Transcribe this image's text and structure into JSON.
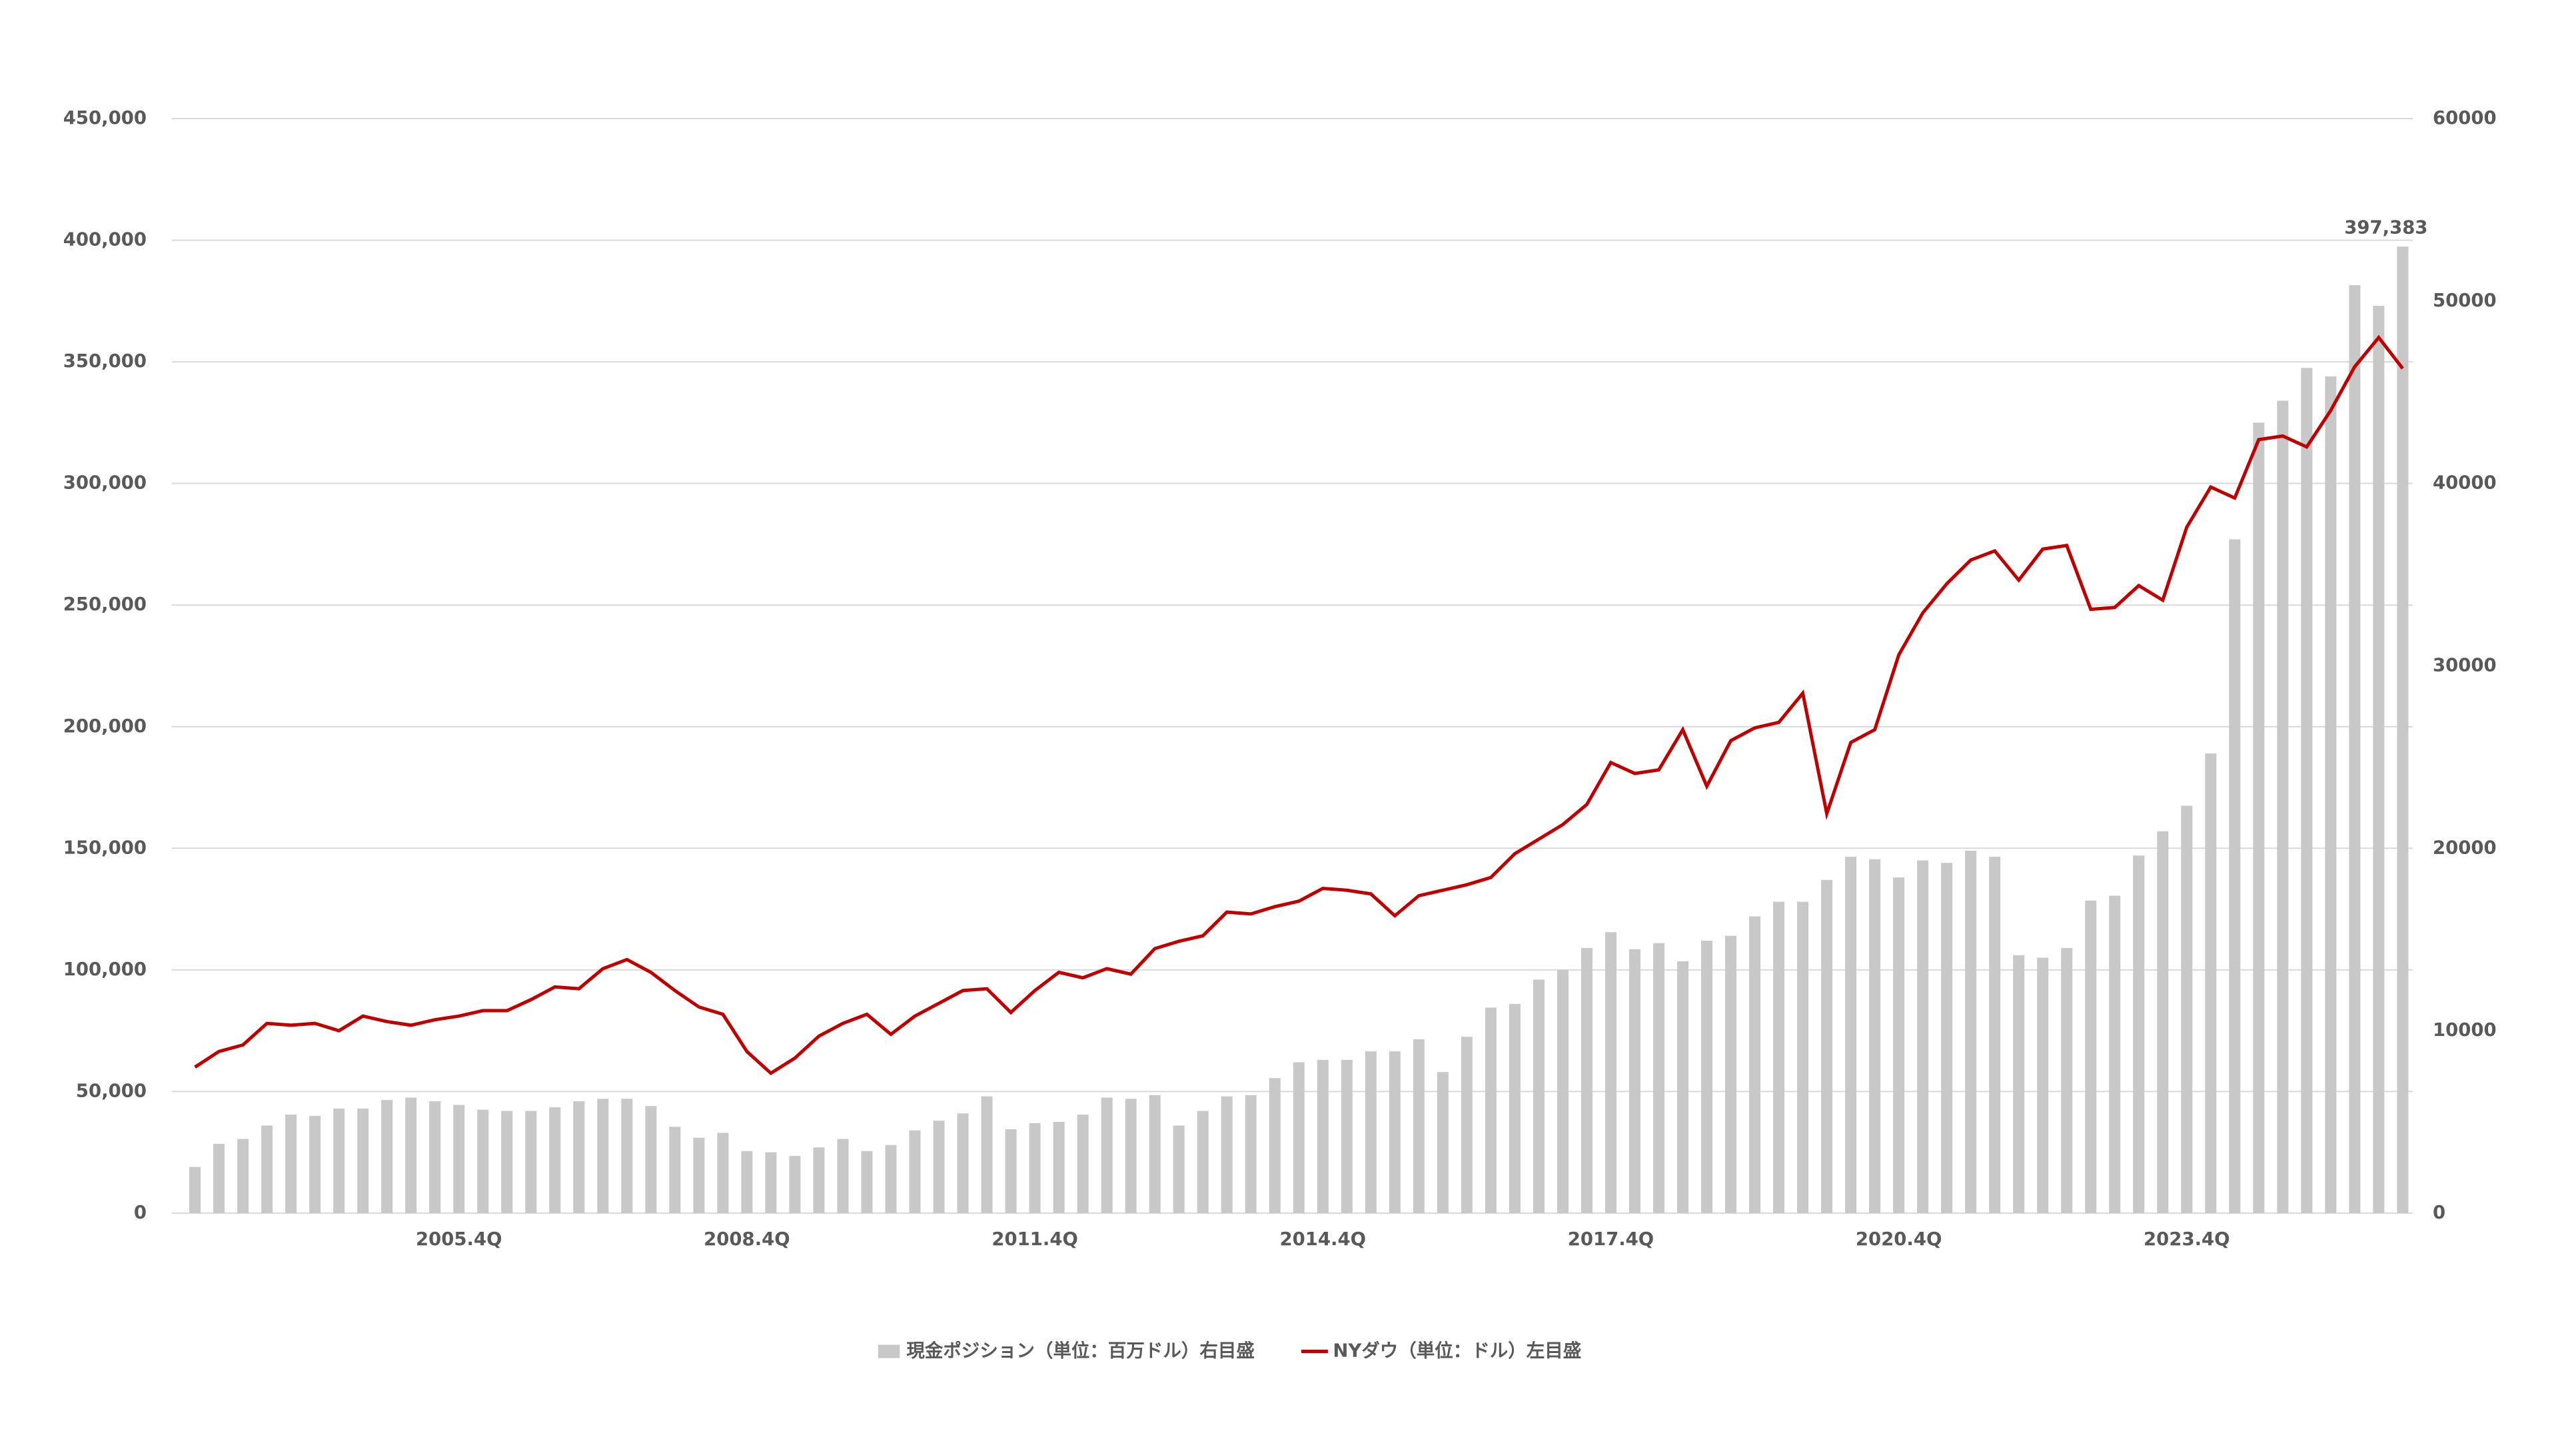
{
  "chart_data": {
    "type": "bar-line",
    "categories": [
      null,
      null,
      null,
      null,
      null,
      null,
      null,
      null,
      null,
      null,
      null,
      "2005.4Q",
      null,
      null,
      null,
      null,
      null,
      null,
      null,
      null,
      null,
      null,
      null,
      "2008.4Q",
      null,
      null,
      null,
      null,
      null,
      null,
      null,
      null,
      null,
      null,
      null,
      "2011.4Q",
      null,
      null,
      null,
      null,
      null,
      null,
      null,
      null,
      null,
      null,
      null,
      "2014.4Q",
      null,
      null,
      null,
      null,
      null,
      null,
      null,
      null,
      null,
      null,
      null,
      "2017.4Q",
      null,
      null,
      null,
      null,
      null,
      null,
      null,
      null,
      null,
      null,
      null,
      "2020.4Q",
      null,
      null,
      null,
      null,
      null,
      null,
      null,
      null,
      null,
      null,
      null,
      "2023.4Q",
      null,
      null,
      null,
      null,
      null,
      null,
      null,
      null,
      null
    ],
    "series": [
      {
        "name": "現金ポジション（単位：百万ドル）右目盛",
        "type": "bar",
        "color": "#c8c8c8",
        "values": [
          19000,
          28500,
          30500,
          36000,
          40500,
          40000,
          43000,
          43000,
          46500,
          47500,
          46000,
          44500,
          42500,
          42000,
          42000,
          43500,
          46000,
          47000,
          47000,
          44000,
          35500,
          31000,
          33000,
          25500,
          25000,
          23500,
          27000,
          30500,
          25500,
          28000,
          34000,
          38000,
          41000,
          48000,
          34500,
          37000,
          37500,
          40500,
          47500,
          47000,
          48500,
          36000,
          42000,
          48000,
          48500,
          55500,
          62000,
          63000,
          63000,
          66500,
          66500,
          71500,
          58000,
          72500,
          84500,
          86000,
          96000,
          100000,
          109000,
          115500,
          108500,
          111000,
          103500,
          112000,
          114000,
          122000,
          128000,
          128000,
          137000,
          146500,
          145500,
          138000,
          145000,
          144000,
          149000,
          146500,
          106000,
          105000,
          109000,
          128500,
          130500,
          147000,
          157000,
          167500,
          189000,
          277000,
          325000,
          334000,
          347500,
          344000,
          381500,
          373000,
          397383
        ],
        "value_labels": [
          null,
          null,
          null,
          null,
          null,
          null,
          null,
          null,
          null,
          null,
          null,
          null,
          null,
          null,
          null,
          null,
          null,
          null,
          null,
          null,
          null,
          null,
          null,
          null,
          null,
          null,
          null,
          null,
          null,
          null,
          null,
          null,
          null,
          null,
          null,
          null,
          null,
          null,
          null,
          null,
          null,
          null,
          null,
          null,
          null,
          null,
          null,
          null,
          null,
          null,
          null,
          null,
          null,
          null,
          null,
          null,
          null,
          null,
          null,
          null,
          null,
          null,
          null,
          null,
          null,
          null,
          null,
          null,
          null,
          null,
          null,
          null,
          null,
          null,
          null,
          null,
          null,
          null,
          null,
          null,
          null,
          null,
          null,
          null,
          null,
          null,
          null,
          null,
          null,
          null,
          null,
          null,
          "397,383"
        ]
      },
      {
        "name": "NYダウ（単位：ドル）左目盛",
        "type": "line",
        "axis": "y2",
        "color": "#c00000",
        "values": [
          8000,
          8860,
          9220,
          10400,
          10300,
          10400,
          10000,
          10800,
          10500,
          10300,
          10600,
          10800,
          11100,
          11100,
          11700,
          12400,
          12300,
          13400,
          13900,
          13200,
          12200,
          11300,
          10900,
          8860,
          7670,
          8500,
          9700,
          10400,
          10900,
          9800,
          10800,
          11500,
          12200,
          12300,
          11000,
          12200,
          13200,
          12900,
          13400,
          13100,
          14500,
          14900,
          15200,
          16500,
          16400,
          16800,
          17100,
          17800,
          17700,
          17500,
          16300,
          17400,
          17700,
          18000,
          18400,
          19700,
          20500,
          21300,
          22400,
          24700,
          24100,
          24300,
          26500,
          23400,
          25900,
          26600,
          26900,
          28500,
          21900,
          25800,
          26500,
          30600,
          32900,
          34500,
          35800,
          36300,
          34700,
          36400,
          36600,
          33100,
          33200,
          34400,
          33600,
          37600,
          39800,
          39200,
          42400,
          42600,
          42000,
          44000,
          46400,
          48000,
          46300
        ]
      }
    ],
    "ylim": [
      0,
      450000
    ],
    "yticks": [
      0,
      {
        "value": 50000,
        "label": "50,000"
      },
      {
        "value": 100000,
        "label": "100,000"
      },
      {
        "value": 150000,
        "label": "150,000"
      },
      {
        "value": 200000,
        "label": "200,000"
      },
      {
        "value": 250000,
        "label": "250,000"
      },
      {
        "value": 300000,
        "label": "300,000"
      },
      {
        "value": 350000,
        "label": "350,000"
      },
      {
        "value": 400000,
        "label": "400,000"
      },
      {
        "value": 450000,
        "label": "450,000"
      }
    ],
    "y2lim": [
      0,
      60000
    ],
    "y2ticks": [
      0,
      10000,
      20000,
      30000,
      40000,
      50000,
      60000
    ],
    "grid": true,
    "legend": "bottom"
  }
}
